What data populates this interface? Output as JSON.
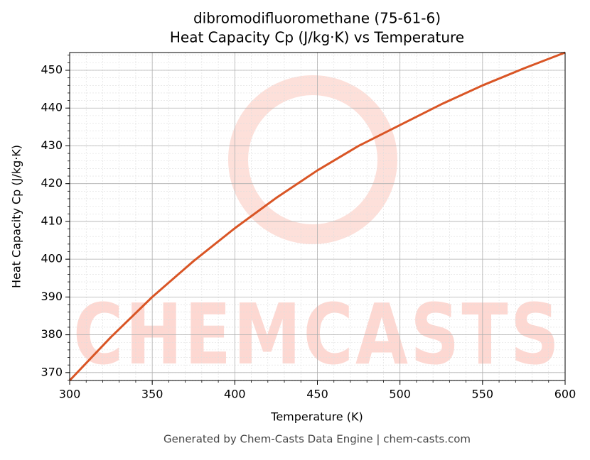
{
  "chart_data": {
    "type": "line",
    "title": "dibromodifluoromethane (75-61-6)",
    "subtitle": "Heat Capacity Cp (J/kg·K) vs Temperature",
    "x_label": "Temperature (K)",
    "y_label": "Heat Capacity Cp (J/kg·K)",
    "footer": "Generated by Chem-Casts Data Engine | chem-casts.com",
    "watermark": "CHEMCASTS",
    "x": [
      300,
      325,
      350,
      375,
      400,
      425,
      450,
      475,
      500,
      525,
      550,
      575,
      600
    ],
    "series": [
      {
        "name": "Heat Capacity Cp",
        "color": "#d95525",
        "values": [
          367.9,
          379.4,
          390.0,
          399.5,
          408.2,
          416.2,
          423.5,
          430.0,
          435.5,
          441.0,
          446.0,
          450.5,
          454.7
        ]
      }
    ],
    "xlim": [
      300,
      600
    ],
    "xticks": [
      300,
      350,
      400,
      450,
      500,
      550,
      600
    ],
    "ylim": [
      367.9,
      454.7
    ],
    "yticks": [
      370,
      380,
      390,
      400,
      410,
      420,
      430,
      440,
      450
    ],
    "grid": true,
    "minor_grid": true
  }
}
